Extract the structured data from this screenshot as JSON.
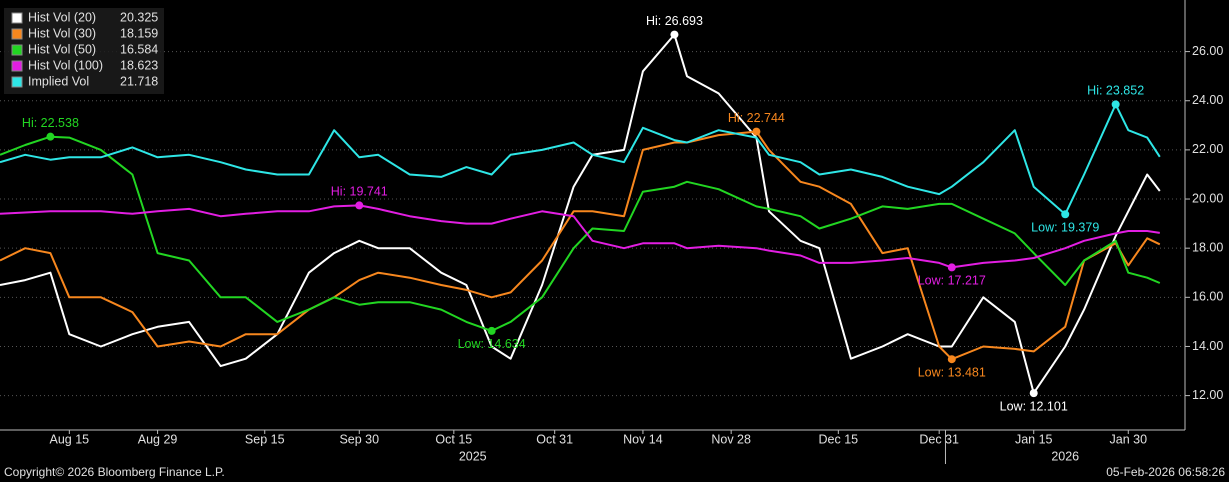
{
  "chart_data": {
    "type": "line",
    "x": [
      "2025-08-04",
      "2025-08-08",
      "2025-08-12",
      "2025-08-15",
      "2025-08-20",
      "2025-08-25",
      "2025-08-29",
      "2025-09-03",
      "2025-09-08",
      "2025-09-12",
      "2025-09-17",
      "2025-09-22",
      "2025-09-26",
      "2025-09-30",
      "2025-10-03",
      "2025-10-08",
      "2025-10-13",
      "2025-10-17",
      "2025-10-21",
      "2025-10-24",
      "2025-10-29",
      "2025-11-03",
      "2025-11-06",
      "2025-11-11",
      "2025-11-14",
      "2025-11-19",
      "2025-11-21",
      "2025-11-26",
      "2025-12-02",
      "2025-12-04",
      "2025-12-09",
      "2025-12-12",
      "2025-12-17",
      "2025-12-22",
      "2025-12-26",
      "2025-12-31",
      "2026-01-02",
      "2026-01-07",
      "2026-01-12",
      "2026-01-15",
      "2026-01-20",
      "2026-01-23",
      "2026-01-28",
      "2026-01-30",
      "2026-02-02",
      "2026-02-04"
    ],
    "series": [
      {
        "name": "Hist Vol (20)",
        "color": "#ffffff",
        "high_label": "Hi: 26.693",
        "low_label": "Low: 12.101",
        "values": [
          16.5,
          16.7,
          17.0,
          14.5,
          14.0,
          14.5,
          14.8,
          15.0,
          13.2,
          13.5,
          14.5,
          17.0,
          17.8,
          18.3,
          18.0,
          18.0,
          17.0,
          16.5,
          14.0,
          13.5,
          16.5,
          20.5,
          21.8,
          22.0,
          25.2,
          26.693,
          25.0,
          24.3,
          22.5,
          19.5,
          18.3,
          18.0,
          13.5,
          14.0,
          14.5,
          14.0,
          14.0,
          16.0,
          15.0,
          12.101,
          14.0,
          15.5,
          18.5,
          19.5,
          21.0,
          20.325
        ]
      },
      {
        "name": "Hist Vol (30)",
        "color": "#f7871e",
        "high_label": "Hi: 22.744",
        "low_label": "Low: 13.481",
        "values": [
          17.5,
          18.0,
          17.8,
          16.0,
          16.0,
          15.4,
          14.0,
          14.2,
          14.0,
          14.5,
          14.5,
          15.5,
          16.0,
          16.7,
          17.0,
          16.8,
          16.5,
          16.3,
          16.0,
          16.2,
          17.5,
          19.5,
          19.5,
          19.3,
          22.0,
          22.3,
          22.3,
          22.6,
          22.744,
          22.0,
          20.7,
          20.5,
          19.8,
          17.8,
          18.0,
          14.0,
          13.481,
          14.0,
          13.9,
          13.8,
          14.8,
          17.5,
          18.2,
          17.3,
          18.4,
          18.159
        ]
      },
      {
        "name": "Hist Vol (50)",
        "color": "#22d622",
        "high_label": "Hi: 22.538",
        "low_label": "Low: 14.634",
        "values": [
          21.8,
          22.2,
          22.538,
          22.5,
          22.0,
          21.0,
          17.8,
          17.5,
          16.0,
          16.0,
          15.0,
          15.5,
          16.0,
          15.7,
          15.8,
          15.8,
          15.5,
          15.0,
          14.634,
          15.0,
          16.0,
          18.0,
          18.8,
          18.7,
          20.3,
          20.5,
          20.7,
          20.4,
          19.7,
          19.6,
          19.3,
          18.8,
          19.2,
          19.7,
          19.6,
          19.8,
          19.8,
          19.2,
          18.6,
          17.8,
          16.5,
          17.5,
          18.3,
          17.0,
          16.8,
          16.584
        ]
      },
      {
        "name": "Hist Vol (100)",
        "color": "#e21ee2",
        "high_label": "Hi: 19.741",
        "low_label": "Low: 17.217",
        "values": [
          19.4,
          19.45,
          19.5,
          19.5,
          19.5,
          19.4,
          19.5,
          19.6,
          19.3,
          19.4,
          19.5,
          19.5,
          19.7,
          19.741,
          19.6,
          19.3,
          19.1,
          19.0,
          19.0,
          19.2,
          19.5,
          19.3,
          18.3,
          18.0,
          18.2,
          18.2,
          18.0,
          18.1,
          18.0,
          17.9,
          17.7,
          17.4,
          17.4,
          17.5,
          17.6,
          17.4,
          17.217,
          17.4,
          17.5,
          17.6,
          18.0,
          18.3,
          18.6,
          18.7,
          18.7,
          18.623
        ]
      },
      {
        "name": "Implied Vol",
        "color": "#2ee6e6",
        "high_label": "Hi: 23.852",
        "low_label": "Low: 19.379",
        "values": [
          21.5,
          21.8,
          21.6,
          21.7,
          21.7,
          22.1,
          21.7,
          21.8,
          21.5,
          21.2,
          21.0,
          21.0,
          22.8,
          21.7,
          21.8,
          21.0,
          20.9,
          21.3,
          21.0,
          21.8,
          22.0,
          22.3,
          21.8,
          21.5,
          22.9,
          22.4,
          22.3,
          22.8,
          22.5,
          21.8,
          21.5,
          21.0,
          21.2,
          20.9,
          20.5,
          20.2,
          20.5,
          21.5,
          22.8,
          20.5,
          19.379,
          21.0,
          23.852,
          22.8,
          22.5,
          21.718
        ]
      }
    ],
    "xlim": [
      "2025-08-04",
      "2026-02-08"
    ],
    "xticks": [
      {
        "value": "2025-08-15",
        "label": "Aug 15"
      },
      {
        "value": "2025-08-29",
        "label": "Aug 29"
      },
      {
        "value": "2025-09-15",
        "label": "Sep 15"
      },
      {
        "value": "2025-09-30",
        "label": "Sep 30"
      },
      {
        "value": "2025-10-15",
        "label": "Oct 15"
      },
      {
        "value": "2025-10-31",
        "label": "Oct 31"
      },
      {
        "value": "2025-11-14",
        "label": "Nov 14"
      },
      {
        "value": "2025-11-28",
        "label": "Nov 28"
      },
      {
        "value": "2025-12-15",
        "label": "Dec 15"
      },
      {
        "value": "2025-12-31",
        "label": "Dec 31"
      },
      {
        "value": "2026-01-15",
        "label": "Jan 15"
      },
      {
        "value": "2026-01-30",
        "label": "Jan 30"
      }
    ],
    "year_labels": [
      "2025",
      "2026"
    ],
    "ylim": [
      10.6,
      28.1
    ],
    "yticks": [
      {
        "value": 12,
        "label": "12.00"
      },
      {
        "value": 14,
        "label": "14.00"
      },
      {
        "value": 16,
        "label": "16.00"
      },
      {
        "value": 18,
        "label": "18.00"
      },
      {
        "value": 20,
        "label": "20.00"
      },
      {
        "value": 22,
        "label": "22.00"
      },
      {
        "value": 24,
        "label": "24.00"
      },
      {
        "value": 26,
        "label": "26.00"
      }
    ],
    "grid": true,
    "legend": "top-left",
    "copyright": "Copyright© 2026 Bloomberg Finance L.P.",
    "timestamp": "05-Feb-2026 06:58:26"
  }
}
